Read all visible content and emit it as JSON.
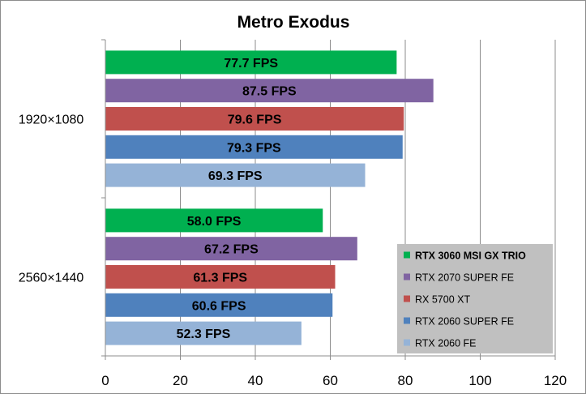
{
  "chart_data": {
    "type": "bar",
    "orientation": "horizontal",
    "title": "Metro Exodus",
    "categories": [
      "1920×1080",
      "2560×1440"
    ],
    "series": [
      {
        "name": "RTX 3060 MSI GX TRIO",
        "values": [
          77.7,
          58.0
        ],
        "labels": [
          "77.7 FPS",
          "58.0 FPS"
        ],
        "color": "#00b050",
        "legend_bold": true
      },
      {
        "name": "RTX 2070 SUPER FE",
        "values": [
          87.5,
          67.2
        ],
        "labels": [
          "87.5 FPS",
          "67.2 FPS"
        ],
        "color": "#8064a2",
        "legend_bold": false
      },
      {
        "name": "RX 5700 XT",
        "values": [
          79.6,
          61.3
        ],
        "labels": [
          "79.6 FPS",
          "61.3 FPS"
        ],
        "color": "#c0504d",
        "legend_bold": false
      },
      {
        "name": "RTX 2060 SUPER FE",
        "values": [
          79.3,
          60.6
        ],
        "labels": [
          "79.3 FPS",
          "60.6 FPS"
        ],
        "color": "#4f81bd",
        "legend_bold": false
      },
      {
        "name": "RTX 2060 FE",
        "values": [
          69.3,
          52.3
        ],
        "labels": [
          "69.3 FPS",
          "52.3 FPS"
        ],
        "color": "#95b3d7",
        "legend_bold": false
      }
    ],
    "xlim": [
      0,
      120
    ],
    "x_ticks": [
      "0",
      "20",
      "40",
      "60",
      "80",
      "100",
      "120"
    ],
    "grid": true,
    "legend_position": "bottom-right",
    "legend_background": "#c0c0c0"
  }
}
